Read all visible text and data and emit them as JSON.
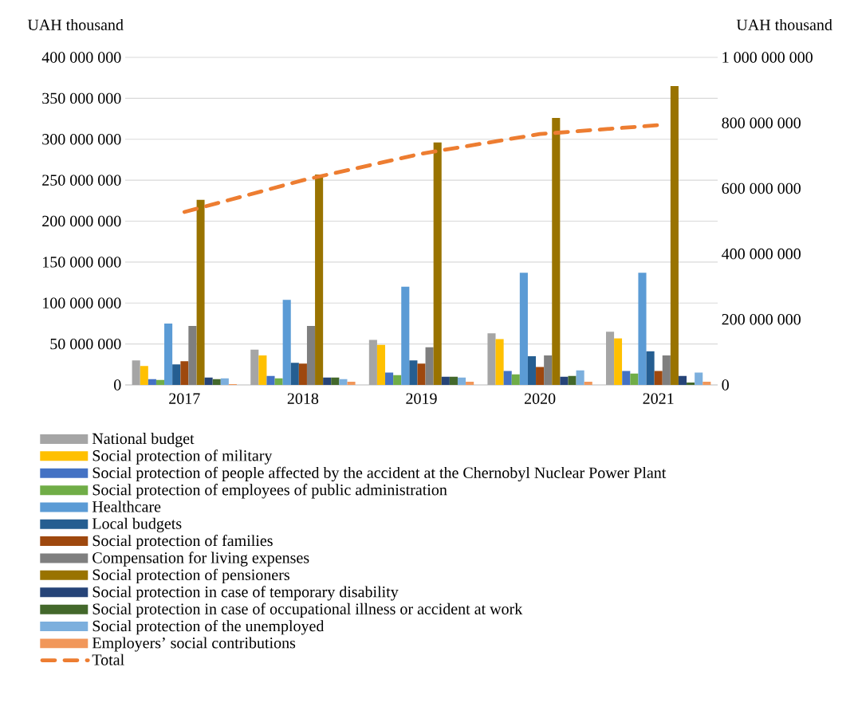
{
  "chart_data": {
    "type": "bar",
    "ylabel": "UAH thousand",
    "y2label": "UAH thousand",
    "categories": [
      "2017",
      "2018",
      "2019",
      "2020",
      "2021"
    ],
    "series": [
      {
        "name": "National budget",
        "color": "#a5a5a5",
        "values": [
          30000000,
          43000000,
          55000000,
          63000000,
          65000000
        ]
      },
      {
        "name": "Social protection of military",
        "color": "#ffc000",
        "values": [
          23000000,
          36000000,
          49000000,
          56000000,
          57000000
        ]
      },
      {
        "name": "Social protection of people affected by the accident at the Chernobyl Nuclear Power Plant",
        "color": "#4472c4",
        "values": [
          7000000,
          11000000,
          15000000,
          17000000,
          17000000
        ]
      },
      {
        "name": "Social protection of employees of public administration",
        "color": "#70ad47",
        "values": [
          6000000,
          8000000,
          12000000,
          13000000,
          14000000
        ]
      },
      {
        "name": "Healthcare",
        "color": "#5b9bd5",
        "values": [
          75000000,
          104000000,
          120000000,
          137000000,
          137000000
        ]
      },
      {
        "name": "Local budgets",
        "color": "#255e91",
        "values": [
          25000000,
          27000000,
          30000000,
          35000000,
          41000000
        ]
      },
      {
        "name": "Social protection of families",
        "color": "#9e480e",
        "values": [
          29000000,
          26000000,
          26000000,
          22000000,
          17000000
        ]
      },
      {
        "name": "Compensation for living expenses",
        "color": "#7f7f7f",
        "values": [
          72000000,
          72000000,
          46000000,
          36000000,
          36000000
        ]
      },
      {
        "name": "Social protection of pensioners",
        "color": "#997300",
        "values": [
          226000000,
          257000000,
          296000000,
          326000000,
          365000000
        ]
      },
      {
        "name": "Social protection in case of temporary disability",
        "color": "#264478",
        "values": [
          9000000,
          9000000,
          10000000,
          10000000,
          11000000
        ]
      },
      {
        "name": "Social protection in case of occupational illness or accident at work",
        "color": "#43682b",
        "values": [
          7000000,
          9000000,
          10000000,
          11000000,
          3000000
        ]
      },
      {
        "name": "Social protection of the unemployed",
        "color": "#7cafdd",
        "values": [
          8000000,
          7000000,
          9000000,
          18000000,
          15000000
        ]
      },
      {
        "name": "Employers’ social contributions",
        "color": "#f1975a",
        "values": [
          1000000,
          4000000,
          4000000,
          4000000,
          4000000
        ]
      },
      {
        "name": "Total",
        "type": "line",
        "axis": "y2",
        "color": "#ed7d31",
        "line_style": "dashed",
        "values": [
          528000000,
          625000000,
          706000000,
          766000000,
          793000000
        ]
      }
    ],
    "ylim": [
      0,
      400000000
    ],
    "yticks": [
      {
        "value": 0,
        "label": "0"
      },
      {
        "value": 50000000,
        "label": "50 000 000"
      },
      {
        "value": 100000000,
        "label": "100 000 000"
      },
      {
        "value": 150000000,
        "label": "150 000 000"
      },
      {
        "value": 200000000,
        "label": "200 000 000"
      },
      {
        "value": 250000000,
        "label": "250 000 000"
      },
      {
        "value": 300000000,
        "label": "300 000 000"
      },
      {
        "value": 350000000,
        "label": "350 000 000"
      },
      {
        "value": 400000000,
        "label": "400 000 000"
      }
    ],
    "y2lim": [
      0,
      1000000000
    ],
    "y2ticks": [
      {
        "value": 0,
        "label": "0"
      },
      {
        "value": 200000000,
        "label": "200 000 000"
      },
      {
        "value": 400000000,
        "label": "400 000 000"
      },
      {
        "value": 600000000,
        "label": "600 000 000"
      },
      {
        "value": 800000000,
        "label": "800 000 000"
      },
      {
        "value": 1000000000,
        "label": "1 000 000 000"
      }
    ],
    "grid": "y",
    "legend": "bottom",
    "marker": "none"
  }
}
